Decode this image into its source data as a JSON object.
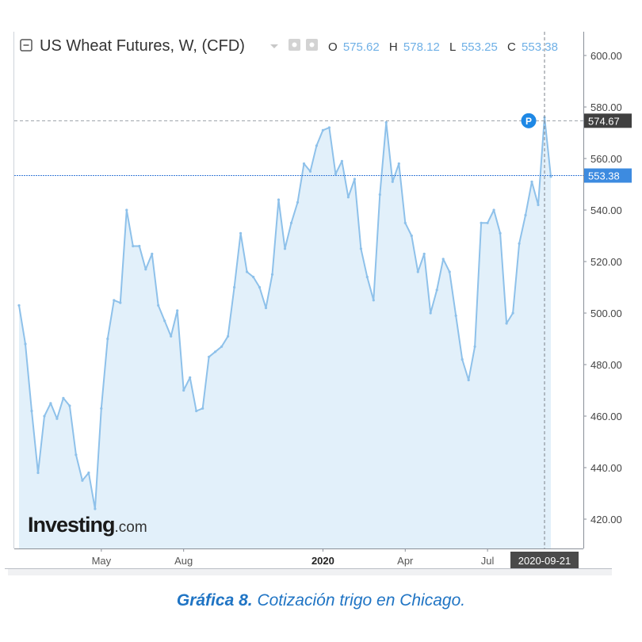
{
  "chart_data": {
    "type": "area",
    "title": "US Wheat Futures, W, (CFD)",
    "ohlc": {
      "o_label": "O",
      "o_value": "575.62",
      "h_label": "H",
      "h_value": "578.12",
      "l_label": "L",
      "l_value": "553.25",
      "c_label": "C",
      "c_value": "553.38"
    },
    "ylim": [
      406,
      612
    ],
    "y_ticks": [
      420,
      440,
      460,
      480,
      500,
      520,
      540,
      560,
      580,
      600
    ],
    "y_tick_labels": [
      "420.00",
      "440.00",
      "460.00",
      "480.00",
      "500.00",
      "520.00",
      "540.00",
      "560.00",
      "580.00",
      "600.00"
    ],
    "x_ticks": [
      {
        "index": 13,
        "label": "May",
        "bold": false
      },
      {
        "index": 26,
        "label": "Aug",
        "bold": false
      },
      {
        "index": 48,
        "label": "2020",
        "bold": true
      },
      {
        "index": 61,
        "label": "Apr",
        "bold": false
      },
      {
        "index": 74,
        "label": "Jul",
        "bold": false
      }
    ],
    "crosshair_date_label": "2020-09-21",
    "crosshair_price": 574.67,
    "crosshair_price_label": "574.67",
    "last_price": 553.38,
    "last_price_label": "553.38",
    "marker_label": "P",
    "series": [
      {
        "values": [
          503,
          488,
          462,
          438,
          460,
          465,
          459,
          467,
          464,
          445,
          435,
          438,
          424,
          463,
          490,
          505,
          504,
          540,
          526,
          526,
          517,
          523,
          503,
          497,
          491,
          501,
          470,
          475,
          462,
          463,
          483,
          485,
          487,
          491,
          510,
          531,
          516,
          514,
          510,
          502,
          515,
          544,
          525,
          535,
          543,
          558,
          555,
          565,
          571,
          572,
          554,
          559,
          545,
          552,
          525,
          514,
          505,
          546,
          574,
          551,
          558,
          535,
          530,
          516,
          523,
          500,
          509,
          521,
          516,
          499,
          482,
          474,
          487,
          535,
          535,
          540,
          531,
          496,
          500,
          527,
          538,
          551,
          542,
          576,
          553
        ]
      }
    ],
    "colors": {
      "line": "#8ec1ea",
      "fill": "#e2f0fa",
      "last_price_line": "#3d7dd8",
      "last_price_box": "#3d8be0",
      "crosshair_box": "#404040",
      "date_box": "#4a4a4a",
      "marker": "#1e88e5"
    }
  },
  "watermark": {
    "brand": "Investing",
    "suffix": ".com"
  },
  "caption": {
    "label": "Gráfica 8.",
    "text": "Cotización trigo en Chicago."
  }
}
